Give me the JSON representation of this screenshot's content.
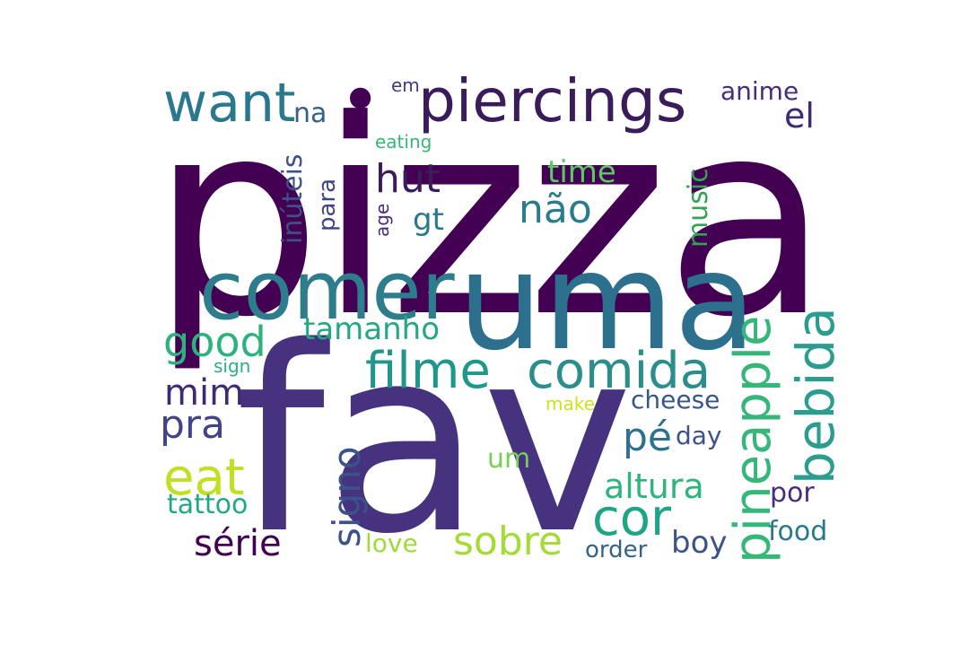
{
  "words": {
    "pizza": {
      "text": "pizza",
      "color": "#440154"
    },
    "fav": {
      "text": "fav",
      "color": "#46327e"
    },
    "uma": {
      "text": "uma",
      "color": "#2d708e"
    },
    "comer": {
      "text": "comer",
      "color": "#2e7d8c"
    },
    "piercings": {
      "text": "piercings",
      "color": "#3b1c5b"
    },
    "bullet": {
      "text": "•",
      "color": "#440154"
    },
    "want": {
      "text": "want",
      "color": "#2a788e"
    },
    "el": {
      "text": "el",
      "color": "#3e2a72"
    },
    "anime": {
      "text": "anime",
      "color": "#472d7b"
    },
    "em": {
      "text": "em",
      "color": "#453781"
    },
    "na": {
      "text": "na",
      "color": "#355f8d"
    },
    "eating": {
      "text": "eating",
      "color": "#35b779"
    },
    "hut": {
      "text": "hut",
      "color": "#3b1c5b"
    },
    "time": {
      "text": "time",
      "color": "#5ec962"
    },
    "nao": {
      "text": "não",
      "color": "#287c8e"
    },
    "gt": {
      "text": "gt",
      "color": "#2a788e"
    },
    "inuteis": {
      "text": "inúteis",
      "color": "#3b528b"
    },
    "para": {
      "text": "para",
      "color": "#414487"
    },
    "age": {
      "text": "age",
      "color": "#482878"
    },
    "music": {
      "text": "music",
      "color": "#31a354"
    },
    "pineapple": {
      "text": "pineapple",
      "color": "#35b779"
    },
    "bebida": {
      "text": "bebida",
      "color": "#2a9d8f"
    },
    "tamanho": {
      "text": "tamanho",
      "color": "#22a884"
    },
    "good": {
      "text": "good",
      "color": "#2db27d"
    },
    "filme": {
      "text": "filme",
      "color": "#1f988b"
    },
    "comida": {
      "text": "comida",
      "color": "#2a8e8c"
    },
    "sign": {
      "text": "sign",
      "color": "#2bb07f"
    },
    "mim": {
      "text": "mim",
      "color": "#3e2a72"
    },
    "pra": {
      "text": "pra",
      "color": "#414487"
    },
    "cheese": {
      "text": "cheese",
      "color": "#39568c"
    },
    "make": {
      "text": "make",
      "color": "#cde11d"
    },
    "pe": {
      "text": "pé",
      "color": "#2c728e"
    },
    "day": {
      "text": "day",
      "color": "#3b528b"
    },
    "signo": {
      "text": "signo",
      "color": "#3b528b"
    },
    "eat": {
      "text": "eat",
      "color": "#c2df23"
    },
    "um": {
      "text": "um",
      "color": "#75d054"
    },
    "altura": {
      "text": "altura",
      "color": "#2fb47c"
    },
    "cor": {
      "text": "cor",
      "color": "#20a486"
    },
    "por": {
      "text": "por",
      "color": "#472d7b"
    },
    "tattoo": {
      "text": "tattoo",
      "color": "#22a884"
    },
    "serie": {
      "text": "série",
      "color": "#440154"
    },
    "sobre": {
      "text": "sobre",
      "color": "#a5db36"
    },
    "love": {
      "text": "love",
      "color": "#a0da39"
    },
    "boy": {
      "text": "boy",
      "color": "#3b528b"
    },
    "order": {
      "text": "order",
      "color": "#33638d"
    },
    "food": {
      "text": "food",
      "color": "#2a788e"
    }
  }
}
